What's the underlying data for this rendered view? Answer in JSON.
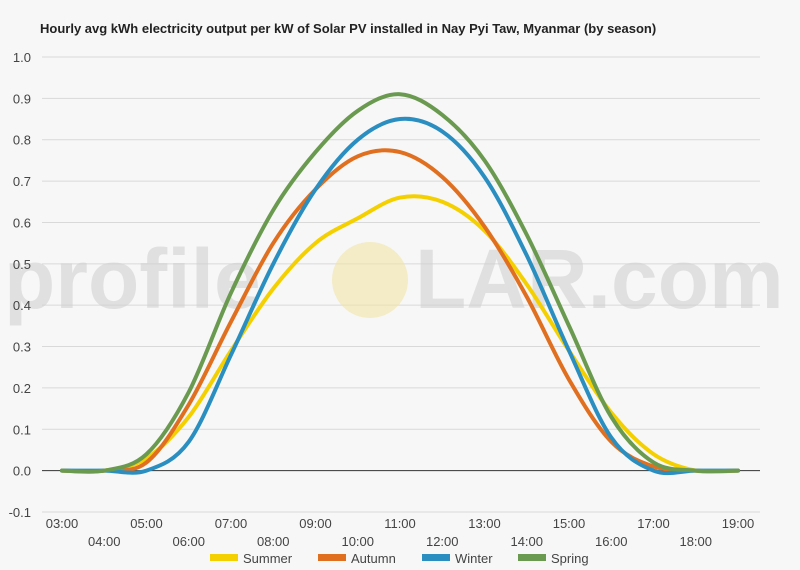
{
  "chart_data": {
    "type": "line",
    "title": "Hourly avg kWh electricity output per kW of Solar PV installed in Nay Pyi Taw, Myanmar (by season)",
    "xlabel": "",
    "ylabel": "",
    "ylim": [
      -0.1,
      1.0
    ],
    "yticks": [
      "-0.1",
      "0.0",
      "0.1",
      "0.2",
      "0.3",
      "0.4",
      "0.5",
      "0.6",
      "0.7",
      "0.8",
      "0.9",
      "1.0"
    ],
    "x": [
      "03:00",
      "04:00",
      "05:00",
      "06:00",
      "07:00",
      "08:00",
      "09:00",
      "10:00",
      "11:00",
      "12:00",
      "13:00",
      "14:00",
      "15:00",
      "16:00",
      "17:00",
      "18:00",
      "19:00"
    ],
    "grid": true,
    "legend_position": "bottom",
    "watermark": {
      "left": "profile",
      "right": "LAR.com"
    },
    "series": [
      {
        "name": "Summer",
        "color": "#f5d000",
        "values": [
          0.0,
          0.0,
          0.03,
          0.13,
          0.29,
          0.44,
          0.55,
          0.61,
          0.66,
          0.65,
          0.58,
          0.45,
          0.29,
          0.14,
          0.04,
          0.0,
          0.0
        ]
      },
      {
        "name": "Autumn",
        "color": "#e07020",
        "values": [
          0.0,
          0.0,
          0.02,
          0.16,
          0.36,
          0.55,
          0.68,
          0.76,
          0.77,
          0.71,
          0.59,
          0.42,
          0.22,
          0.07,
          0.01,
          0.0,
          0.0
        ]
      },
      {
        "name": "Winter",
        "color": "#2a8fc0",
        "values": [
          0.0,
          0.0,
          0.0,
          0.07,
          0.28,
          0.5,
          0.68,
          0.8,
          0.85,
          0.82,
          0.71,
          0.52,
          0.29,
          0.08,
          0.0,
          0.0,
          0.0
        ]
      },
      {
        "name": "Spring",
        "color": "#6a9a50",
        "values": [
          0.0,
          0.0,
          0.04,
          0.19,
          0.43,
          0.63,
          0.77,
          0.87,
          0.91,
          0.86,
          0.75,
          0.57,
          0.35,
          0.13,
          0.02,
          0.0,
          0.0
        ]
      }
    ]
  }
}
